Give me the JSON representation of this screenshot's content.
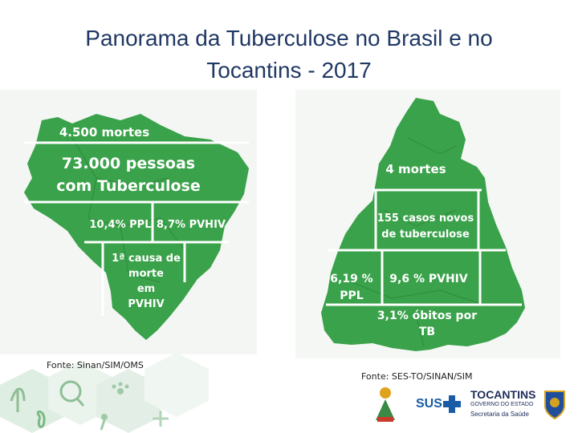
{
  "slide": {
    "title_line1": "Panorama da Tuberculose no Brasil e no",
    "title_line2": "Tocantins - 2017"
  },
  "brazil": {
    "deaths": "4.500 mortes",
    "people_line1": "73.000 pessoas",
    "people_line2": "com Tuberculose",
    "ppl": "10,4% PPL",
    "pvhiv": "8,7% PVHIV",
    "cause_line1": "1ª causa de",
    "cause_line2": "morte",
    "cause_line3": "em",
    "cause_line4": "PVHIV",
    "source": "Fonte: Sinan/SIM/OMS"
  },
  "tocantins": {
    "deaths": "4 mortes",
    "cases_line1": "155 casos novos",
    "cases_line2": "de tuberculose",
    "ppl_line1": "6,19 %",
    "ppl_line2": "PPL",
    "pvhiv": "9,6 % PVHIV",
    "deaths_rate_line1": "3,1% óbitos por",
    "deaths_rate_line2": "TB",
    "source": "Fonte:  SES-TO/SINAN/SIM"
  },
  "logos": {
    "sus": "SUS",
    "state_name": "TOCANTINS",
    "state_sub": "GOVERNO DO ESTADO",
    "department": "Secretaria da Saúde"
  },
  "colors": {
    "map_green": "#3aa24a",
    "title": "#1f3864",
    "sus_blue": "#1a5ba6"
  }
}
